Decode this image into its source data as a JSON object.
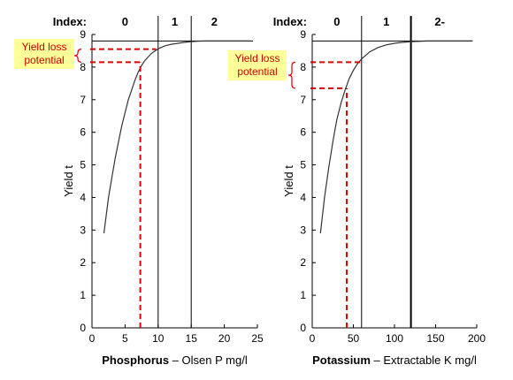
{
  "chart_data": [
    {
      "type": "line",
      "xlabel_bold": "Phosphorus",
      "xlabel_rest": " – Olsen P mg/l",
      "ylabel": "Yield  t",
      "xlim": [
        0,
        25
      ],
      "ylim": [
        0,
        9
      ],
      "xticks": [
        "0",
        "5",
        "10",
        "15",
        "20",
        "25"
      ],
      "yticks": [
        "0",
        "1",
        "2",
        "3",
        "4",
        "5",
        "6",
        "7",
        "8",
        "9"
      ],
      "index_label": "Index:",
      "index_values": [
        "0",
        "1",
        "2"
      ],
      "index_boundaries": [
        10,
        15
      ],
      "curve": {
        "x": [
          1.8,
          2.5,
          3,
          3.5,
          4,
          4.5,
          5,
          5.5,
          6,
          6.5,
          7,
          7.5,
          8,
          9,
          10,
          11,
          12,
          13,
          14,
          15,
          16,
          17,
          18,
          20,
          22,
          24
        ],
        "y": [
          2.9,
          4.0,
          4.6,
          5.2,
          5.7,
          6.2,
          6.6,
          7.0,
          7.3,
          7.6,
          7.85,
          8.05,
          8.2,
          8.42,
          8.56,
          8.65,
          8.7,
          8.73,
          8.76,
          8.78,
          8.79,
          8.8,
          8.8,
          8.8,
          8.8,
          8.8
        ]
      },
      "max_yield": 8.8,
      "dashed_x": 7.3,
      "dashed_y_low": 8.15,
      "dashed_y_high": 8.55,
      "annotation_lines": [
        "Yield loss",
        "potential"
      ]
    },
    {
      "type": "line",
      "xlabel_bold": "Potassium",
      "xlabel_rest": " – Extractable K mg/l",
      "ylabel": "Yield  t",
      "xlim": [
        0,
        200
      ],
      "ylim": [
        0,
        9
      ],
      "xticks": [
        "0",
        "50",
        "100",
        "150",
        "200"
      ],
      "yticks": [
        "0",
        "1",
        "2",
        "3",
        "4",
        "5",
        "6",
        "7",
        "8",
        "9"
      ],
      "index_label": "Index:",
      "index_values": [
        "0",
        "1",
        "2-"
      ],
      "index_boundaries": [
        60,
        120
      ],
      "curve": {
        "x": [
          10,
          15,
          20,
          25,
          30,
          35,
          40,
          45,
          50,
          55,
          60,
          70,
          80,
          90,
          100,
          110,
          120,
          140,
          160,
          180,
          195
        ],
        "y": [
          2.9,
          4.0,
          4.9,
          5.7,
          6.4,
          6.9,
          7.3,
          7.65,
          7.9,
          8.1,
          8.25,
          8.47,
          8.6,
          8.68,
          8.73,
          8.76,
          8.78,
          8.8,
          8.8,
          8.8,
          8.8
        ]
      },
      "max_yield": 8.8,
      "dashed_x": 42,
      "dashed_y_low": 7.35,
      "dashed_y_high": 8.15,
      "annotation_lines": [
        "Yield loss",
        "potential"
      ]
    }
  ],
  "colors": {
    "annotation_bg": "#ffff99",
    "annotation_text": "#cc0000",
    "dashed": "#dd0000",
    "curve": "#333333"
  }
}
